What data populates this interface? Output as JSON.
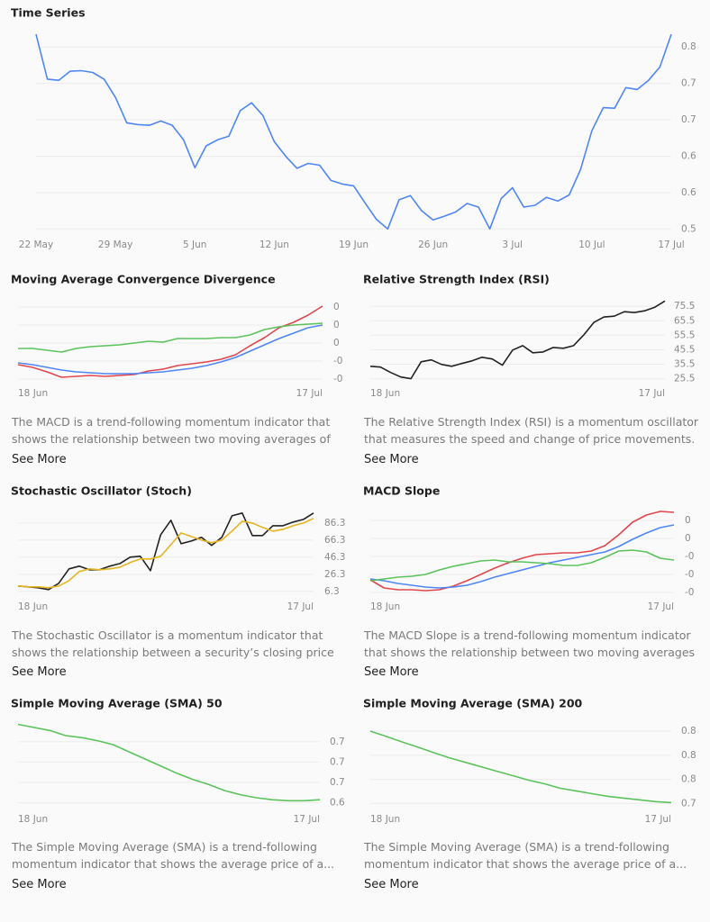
{
  "chart_data": [
    {
      "type": "line",
      "title": "Time Series",
      "xticks": [
        "22 May",
        "29 May",
        "5 Jun",
        "12 Jun",
        "19 Jun",
        "26 Jun",
        "3 Jul",
        "10 Jul",
        "17 Jul"
      ],
      "ylim": [
        0.49,
        0.83
      ],
      "yticks": [
        {
          "value": 0.5,
          "label": "0.5"
        },
        {
          "value": 0.56,
          "label": "0.6"
        },
        {
          "value": 0.62,
          "label": "0.6"
        },
        {
          "value": 0.68,
          "label": "0.7"
        },
        {
          "value": 0.74,
          "label": "0.7"
        },
        {
          "value": 0.8,
          "label": "0.8"
        }
      ],
      "grid": true,
      "series": [
        {
          "color": "#4f86f7",
          "values": [
            0.821,
            0.747,
            0.745,
            0.76,
            0.761,
            0.758,
            0.747,
            0.717,
            0.675,
            0.672,
            0.671,
            0.678,
            0.671,
            0.647,
            0.601,
            0.637,
            0.647,
            0.653,
            0.695,
            0.708,
            0.687,
            0.644,
            0.62,
            0.6,
            0.608,
            0.605,
            0.58,
            0.574,
            0.571,
            0.543,
            0.516,
            0.5,
            0.548,
            0.555,
            0.53,
            0.515,
            0.521,
            0.528,
            0.542,
            0.536,
            0.5,
            0.55,
            0.568,
            0.536,
            0.539,
            0.552,
            0.546,
            0.556,
            0.598,
            0.662,
            0.7,
            0.699,
            0.733,
            0.73,
            0.745,
            0.767,
            0.821
          ]
        }
      ]
    },
    {
      "type": "line",
      "title": "Moving Average Convergence Divergence",
      "xticks": [
        "18 Jun",
        "17 Jul"
      ],
      "ylim": [
        -0.021,
        0.024
      ],
      "yticks": [
        {
          "value": 0.02,
          "label": "0"
        },
        {
          "value": 0.01,
          "label": "0"
        },
        {
          "value": 0,
          "label": "0"
        },
        {
          "value": -0.01,
          "label": "-0"
        },
        {
          "value": -0.02,
          "label": "-0"
        }
      ],
      "grid": true,
      "series": [
        {
          "color": "#e0474c",
          "values": [
            -0.012,
            -0.0135,
            -0.016,
            -0.019,
            -0.0185,
            -0.018,
            -0.0185,
            -0.018,
            -0.0175,
            -0.0155,
            -0.0145,
            -0.0125,
            -0.0115,
            -0.0105,
            -0.009,
            -0.0065,
            -0.0015,
            0.003,
            0.0085,
            0.0115,
            0.0155,
            0.0205
          ]
        },
        {
          "color": "#4f86f7",
          "values": [
            -0.011,
            -0.012,
            -0.0135,
            -0.015,
            -0.016,
            -0.0165,
            -0.017,
            -0.017,
            -0.017,
            -0.0165,
            -0.016,
            -0.015,
            -0.014,
            -0.0125,
            -0.0105,
            -0.008,
            -0.0045,
            -0.001,
            0.0025,
            0.0055,
            0.0085,
            0.01
          ]
        },
        {
          "color": "#5cc25c",
          "values": [
            -0.003,
            -0.003,
            -0.004,
            -0.005,
            -0.003,
            -0.002,
            -0.0015,
            -0.001,
            0,
            0.001,
            0.0005,
            0.0025,
            0.0025,
            0.0025,
            0.003,
            0.003,
            0.0045,
            0.0075,
            0.009,
            0.01,
            0.0105,
            0.011
          ]
        }
      ],
      "description": "The MACD is a trend-following momentum indicator that shows the relationship between two moving averages of a...",
      "link": "See More"
    },
    {
      "type": "line",
      "title": "Relative Strength Index (RSI)",
      "xticks": [
        "18 Jun",
        "17 Jul"
      ],
      "ylim": [
        24,
        80
      ],
      "yticks": [
        75.5,
        65.5,
        55.5,
        45.5,
        35.5,
        25.5
      ],
      "grid": true,
      "series": [
        {
          "color": "#222222",
          "values": [
            34.1,
            33.5,
            29.8,
            26.7,
            25.5,
            37.2,
            38.5,
            35.4,
            34.1,
            36.0,
            37.8,
            40.3,
            39.1,
            34.8,
            45.3,
            48.3,
            43.4,
            44.0,
            47.1,
            46.5,
            48.3,
            55.7,
            64.4,
            68.1,
            68.7,
            71.8,
            71.2,
            72.4,
            74.9,
            79.2
          ]
        }
      ],
      "description": "The Relative Strength Index (RSI) is a momentum oscillator that measures the speed and change of price movements. I...",
      "link": "See More"
    },
    {
      "type": "line",
      "title": "Stochastic Oscillator (Stoch)",
      "xticks": [
        "18 Jun",
        "17 Jul"
      ],
      "ylim": [
        4,
        103
      ],
      "yticks": [
        86.3,
        66.3,
        46.3,
        26.3,
        6.3
      ],
      "grid": true,
      "series": [
        {
          "color": "#222222",
          "values": [
            12.6,
            11.6,
            10.5,
            8.4,
            15.8,
            32.6,
            35.8,
            31.6,
            31.6,
            35.8,
            38.9,
            46.3,
            47.4,
            30.5,
            72.6,
            89.5,
            62.1,
            65.2,
            69.5,
            60.0,
            69.5,
            94.7,
            97.9,
            71.6,
            71.6,
            83.1,
            83.1,
            87.4,
            90.5,
            97.9
          ]
        },
        {
          "color": "#e6b422",
          "values": [
            12.6,
            11.6,
            11.6,
            10.5,
            12.6,
            18.9,
            29.5,
            32.6,
            31.6,
            32.6,
            34.7,
            40.0,
            44.2,
            44.2,
            47.4,
            61.0,
            74.7,
            70.5,
            66.3,
            63.2,
            66.3,
            76.8,
            88.4,
            86.3,
            81.1,
            76.8,
            78.9,
            83.1,
            86.3,
            91.6
          ]
        }
      ],
      "description": "The Stochastic Oscillator is a momentum indicator that shows the relationship between a security’s closing price and its...",
      "link": "See More"
    },
    {
      "type": "line",
      "title": "MACD Slope",
      "xticks": [
        "18 Jun",
        "17 Jul"
      ],
      "ylim": [
        -0.0051,
        0.0043
      ],
      "yticks": [
        {
          "value": 0.003,
          "label": "0"
        },
        {
          "value": 0.001,
          "label": "0"
        },
        {
          "value": -0.001,
          "label": "-0"
        },
        {
          "value": -0.003,
          "label": "-0"
        },
        {
          "value": -0.005,
          "label": "-0"
        }
      ],
      "grid": true,
      "series": [
        {
          "color": "#e0474c",
          "values": [
            -0.0036,
            -0.0045,
            -0.0047,
            -0.0047,
            -0.0048,
            -0.0047,
            -0.0043,
            -0.0037,
            -0.003,
            -0.0023,
            -0.0017,
            -0.0012,
            -0.0008,
            -0.0007,
            -0.0006,
            -0.0006,
            -0.0004,
            0.0002,
            0.0014,
            0.0028,
            0.0036,
            0.004,
            0.0039
          ]
        },
        {
          "color": "#4f86f7",
          "values": [
            -0.0035,
            -0.0037,
            -0.004,
            -0.0042,
            -0.0044,
            -0.0045,
            -0.0044,
            -0.0042,
            -0.0038,
            -0.0033,
            -0.0029,
            -0.0025,
            -0.0021,
            -0.0017,
            -0.0014,
            -0.0011,
            -0.0008,
            -0.0005,
            0.0001,
            0.0009,
            0.0016,
            0.0022,
            0.0025
          ]
        },
        {
          "color": "#5cc25c",
          "values": [
            -0.0037,
            -0.0035,
            -0.0033,
            -0.0032,
            -0.003,
            -0.0025,
            -0.0021,
            -0.0018,
            -0.0015,
            -0.0014,
            -0.0016,
            -0.0016,
            -0.0017,
            -0.0018,
            -0.002,
            -0.002,
            -0.0017,
            -0.0011,
            -0.0004,
            -0.0003,
            -0.0005,
            -0.0012,
            -0.0014
          ]
        }
      ],
      "description": "The MACD Slope is a trend-following momentum indicator that shows the relationship between two moving averages ...",
      "link": "See More"
    },
    {
      "type": "line",
      "title": "Simple Moving Average (SMA) 50",
      "xticks": [
        "18 Jun",
        "17 Jul"
      ],
      "ylim": [
        0.637,
        0.721
      ],
      "yticks": [
        {
          "value": 0.7,
          "label": "0.7"
        },
        {
          "value": 0.68,
          "label": "0.7"
        },
        {
          "value": 0.66,
          "label": "0.7"
        },
        {
          "value": 0.64,
          "label": "0.6"
        }
      ],
      "grid": true,
      "series": [
        {
          "color": "#5cc25c",
          "values": [
            0.717,
            0.714,
            0.711,
            0.706,
            0.704,
            0.701,
            0.697,
            0.69,
            0.683,
            0.676,
            0.669,
            0.663,
            0.658,
            0.652,
            0.648,
            0.645,
            0.643,
            0.642,
            0.642,
            0.643
          ]
        }
      ],
      "description": "The Simple Moving Average (SMA) is a trend-following momentum indicator that shows the average price of a...",
      "link": "See More"
    },
    {
      "type": "line",
      "title": "Simple Moving Average (SMA) 200",
      "xticks": [
        "18 Jun",
        "17 Jul"
      ],
      "ylim": [
        0.738,
        0.809
      ],
      "yticks": [
        {
          "value": 0.8,
          "label": "0.8"
        },
        {
          "value": 0.78,
          "label": "0.8"
        },
        {
          "value": 0.76,
          "label": "0.8"
        },
        {
          "value": 0.74,
          "label": "0.7"
        }
      ],
      "grid": true,
      "series": [
        {
          "color": "#5cc25c",
          "values": [
            0.8,
            0.7956,
            0.7911,
            0.7867,
            0.7822,
            0.7778,
            0.7741,
            0.7704,
            0.7667,
            0.763,
            0.7593,
            0.7563,
            0.7526,
            0.7504,
            0.7481,
            0.7459,
            0.7444,
            0.743,
            0.7415,
            0.7407
          ]
        }
      ],
      "description": "The Simple Moving Average (SMA) is a trend-following momentum indicator that shows the average price of a...",
      "link": "See More"
    }
  ]
}
